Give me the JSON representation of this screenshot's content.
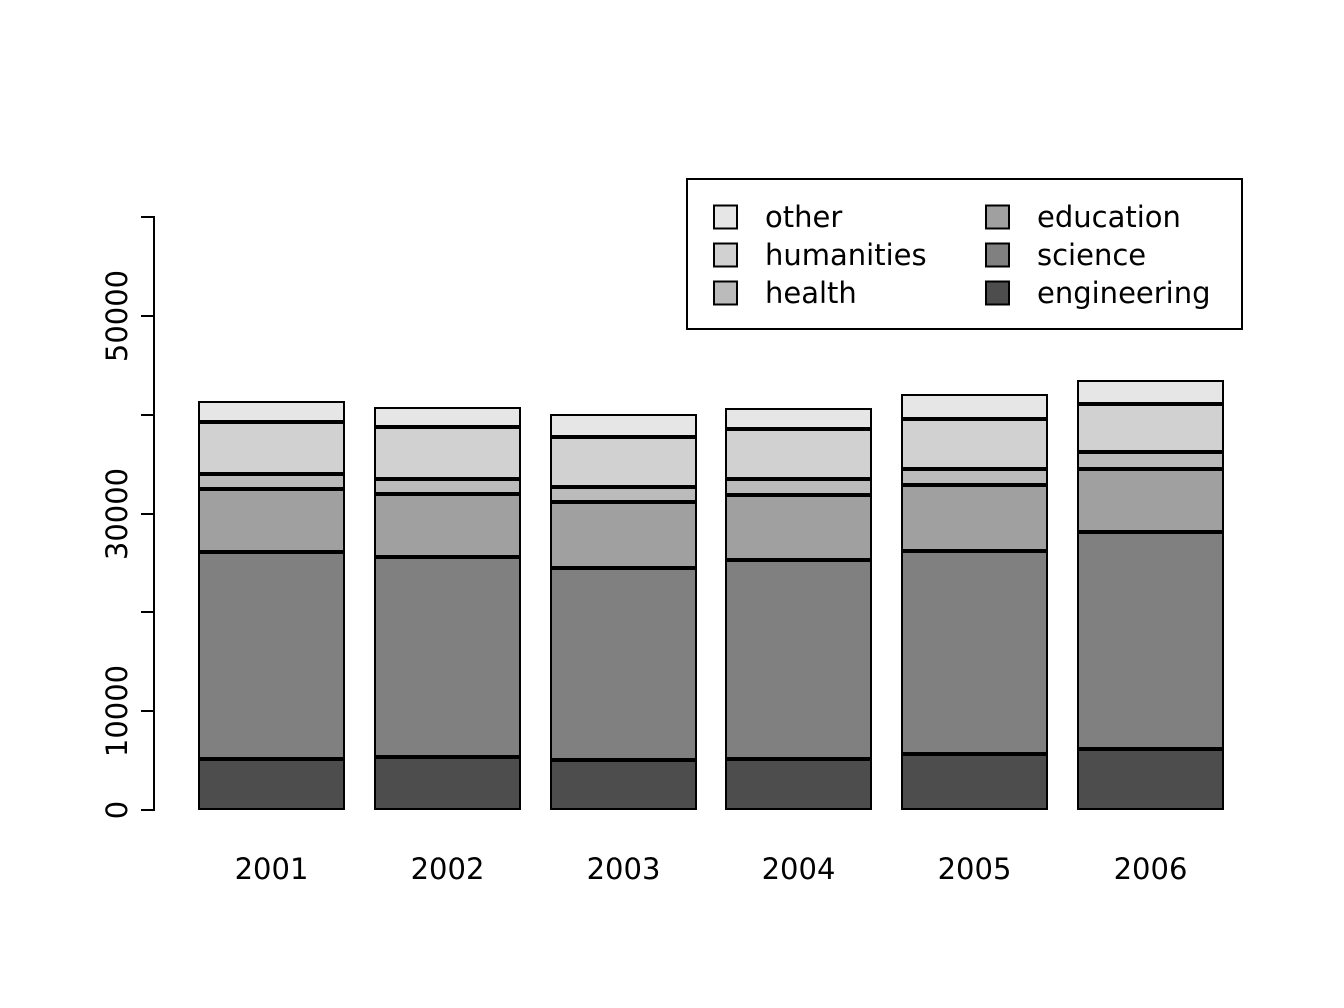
{
  "chart_data": {
    "type": "bar",
    "stacked": true,
    "title": "",
    "xlabel": "",
    "ylabel": "",
    "categories": [
      "2001",
      "2002",
      "2003",
      "2004",
      "2005",
      "2006"
    ],
    "series": [
      {
        "name": "engineering",
        "color": "#4D4D4D",
        "values": [
          5200,
          5400,
          5100,
          5200,
          5700,
          6200
        ]
      },
      {
        "name": "science",
        "color": "#808080",
        "values": [
          20900,
          20200,
          19400,
          20100,
          20500,
          21900
        ]
      },
      {
        "name": "education",
        "color": "#A0A0A0",
        "values": [
          6400,
          6400,
          6700,
          6600,
          6700,
          6400
        ]
      },
      {
        "name": "health",
        "color": "#BBBBBB",
        "values": [
          1500,
          1500,
          1500,
          1600,
          1600,
          1700
        ]
      },
      {
        "name": "humanities",
        "color": "#D1D1D1",
        "values": [
          5300,
          5300,
          5100,
          5100,
          5100,
          4900
        ]
      },
      {
        "name": "other",
        "color": "#E6E6E6",
        "values": [
          2100,
          2000,
          2300,
          2100,
          2500,
          2400
        ]
      }
    ],
    "ylim": [
      0,
      60000
    ],
    "yticks": [
      0,
      10000,
      20000,
      30000,
      40000,
      50000,
      60000
    ],
    "ytick_labels_shown": {
      "0": "0",
      "10000": "10000",
      "30000": "30000",
      "50000": "50000"
    },
    "grid": false,
    "legend": {
      "position": "top-right",
      "columns": 2,
      "items": [
        {
          "label": "other",
          "color": "#E6E6E6"
        },
        {
          "label": "humanities",
          "color": "#D1D1D1"
        },
        {
          "label": "health",
          "color": "#BBBBBB"
        },
        {
          "label": "education",
          "color": "#A0A0A0"
        },
        {
          "label": "science",
          "color": "#808080"
        },
        {
          "label": "engineering",
          "color": "#4D4D4D"
        }
      ]
    },
    "bar_border_color": "#000000",
    "axis_color": "#000000"
  }
}
